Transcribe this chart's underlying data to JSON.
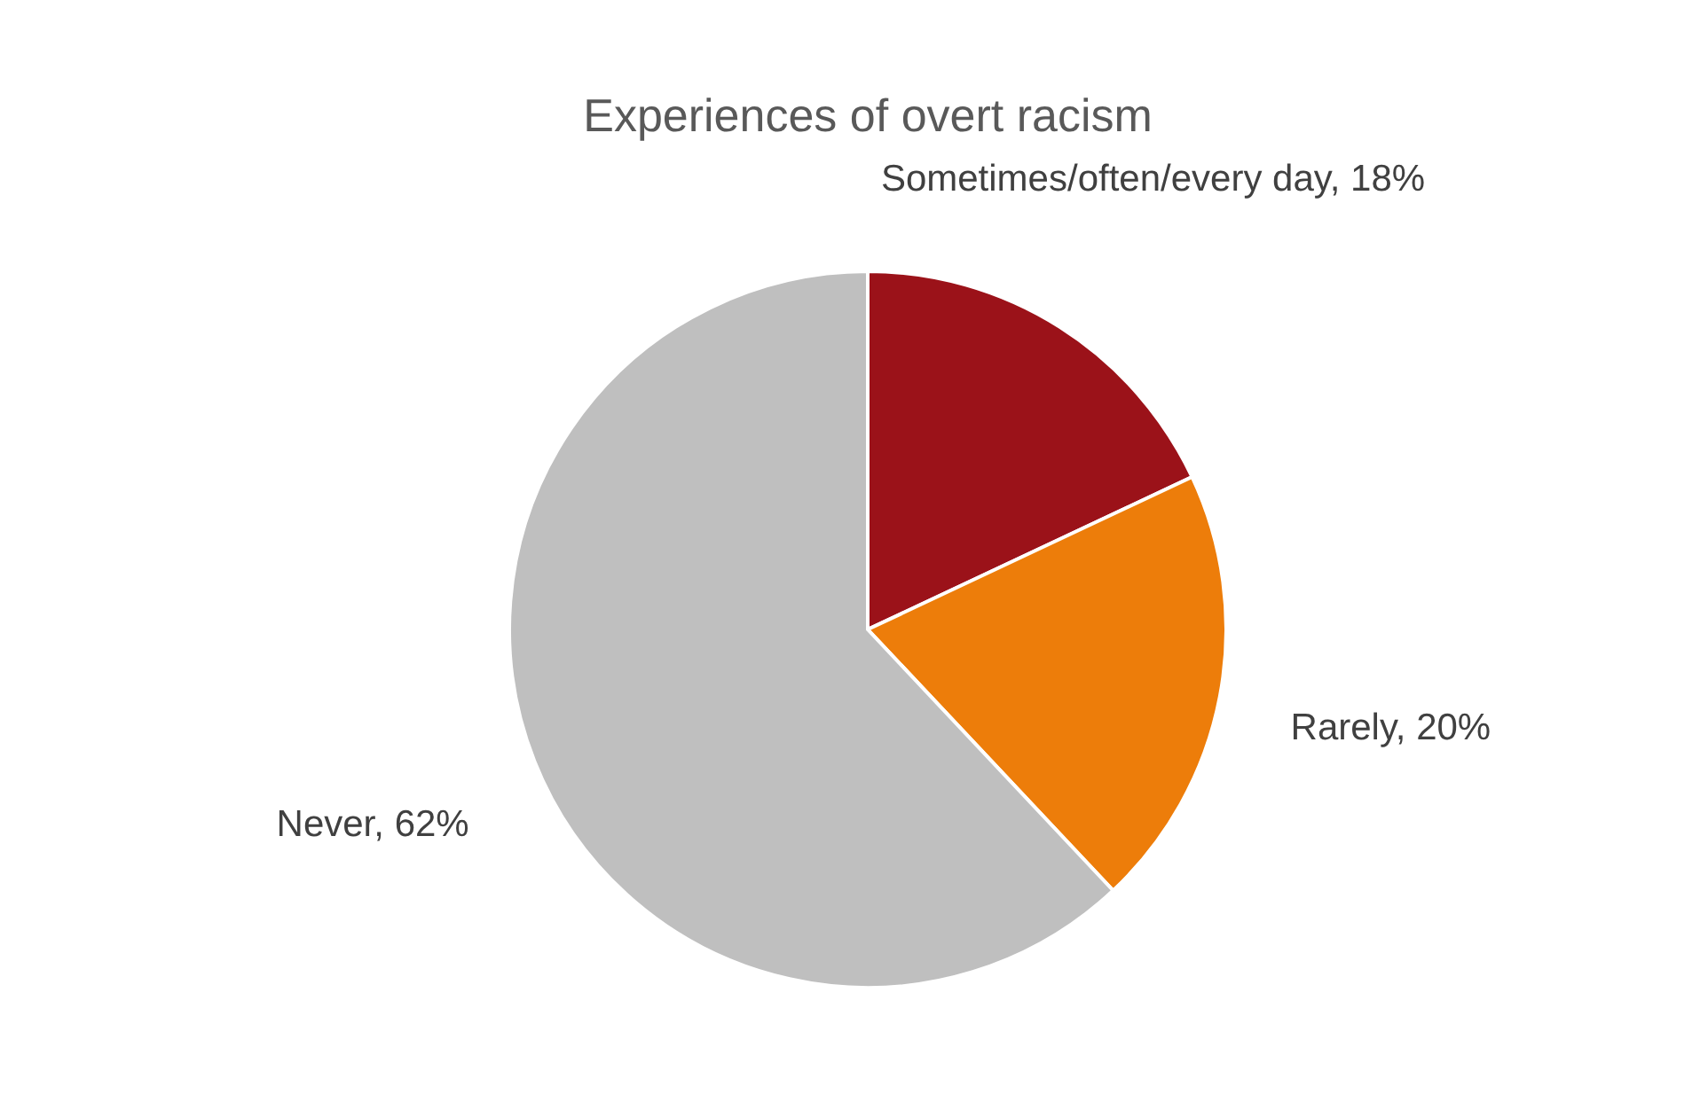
{
  "chart_data": {
    "type": "pie",
    "title": "Experiences of overt racism",
    "categories": [
      "Sometimes/often/every day",
      "Rarely",
      "Never"
    ],
    "values": [
      18,
      20,
      62
    ],
    "value_labels": [
      "18%",
      "20%",
      "62%"
    ],
    "colors": [
      "#9b1219",
      "#ed7d0a",
      "#bfbfbf"
    ]
  }
}
